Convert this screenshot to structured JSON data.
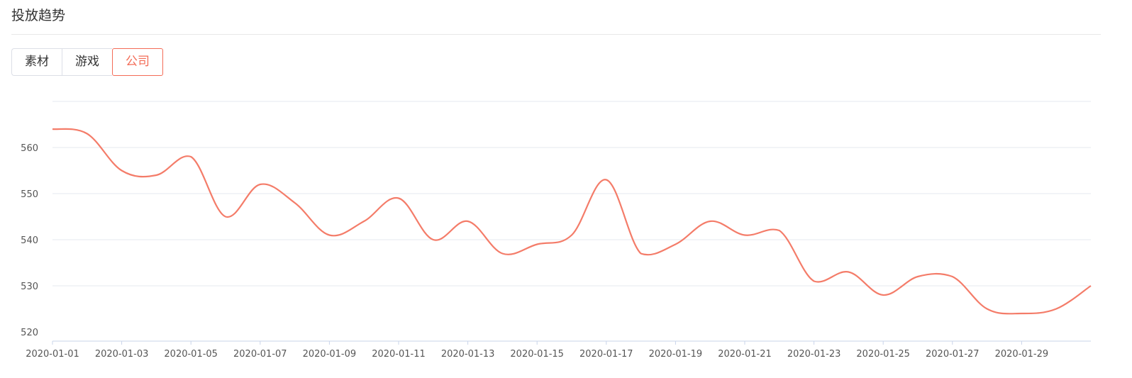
{
  "header": {
    "title": "投放趋势"
  },
  "tabs": [
    {
      "label": "素材",
      "active": false
    },
    {
      "label": "游戏",
      "active": false
    },
    {
      "label": "公司",
      "active": true
    }
  ],
  "colors": {
    "line": "#f47c69",
    "grid": "#e6e9ef",
    "axis": "#c9d4ea",
    "accent": "#f36c57"
  },
  "chart_data": {
    "type": "line",
    "title": "",
    "xlabel": "",
    "ylabel": "",
    "ylim": [
      518,
      570
    ],
    "yticks": [
      520,
      530,
      540,
      550,
      560
    ],
    "grid": true,
    "smooth": true,
    "x": [
      "2020-01-01",
      "2020-01-02",
      "2020-01-03",
      "2020-01-04",
      "2020-01-05",
      "2020-01-06",
      "2020-01-07",
      "2020-01-08",
      "2020-01-09",
      "2020-01-10",
      "2020-01-11",
      "2020-01-12",
      "2020-01-13",
      "2020-01-14",
      "2020-01-15",
      "2020-01-16",
      "2020-01-17",
      "2020-01-18",
      "2020-01-19",
      "2020-01-20",
      "2020-01-21",
      "2020-01-22",
      "2020-01-23",
      "2020-01-24",
      "2020-01-25",
      "2020-01-26",
      "2020-01-27",
      "2020-01-28",
      "2020-01-29",
      "2020-01-30",
      "2020-01-31"
    ],
    "xticks": [
      "2020-01-01",
      "2020-01-03",
      "2020-01-05",
      "2020-01-07",
      "2020-01-09",
      "2020-01-11",
      "2020-01-13",
      "2020-01-15",
      "2020-01-17",
      "2020-01-19",
      "2020-01-21",
      "2020-01-23",
      "2020-01-25",
      "2020-01-27",
      "2020-01-29"
    ],
    "series": [
      {
        "name": "",
        "values": [
          564,
          563,
          555,
          554,
          558,
          545,
          552,
          548,
          541,
          544,
          549,
          540,
          544,
          537,
          539,
          541,
          553,
          537,
          539,
          544,
          541,
          542,
          531,
          533,
          528,
          532,
          532,
          525,
          524,
          525,
          530
        ]
      }
    ]
  }
}
